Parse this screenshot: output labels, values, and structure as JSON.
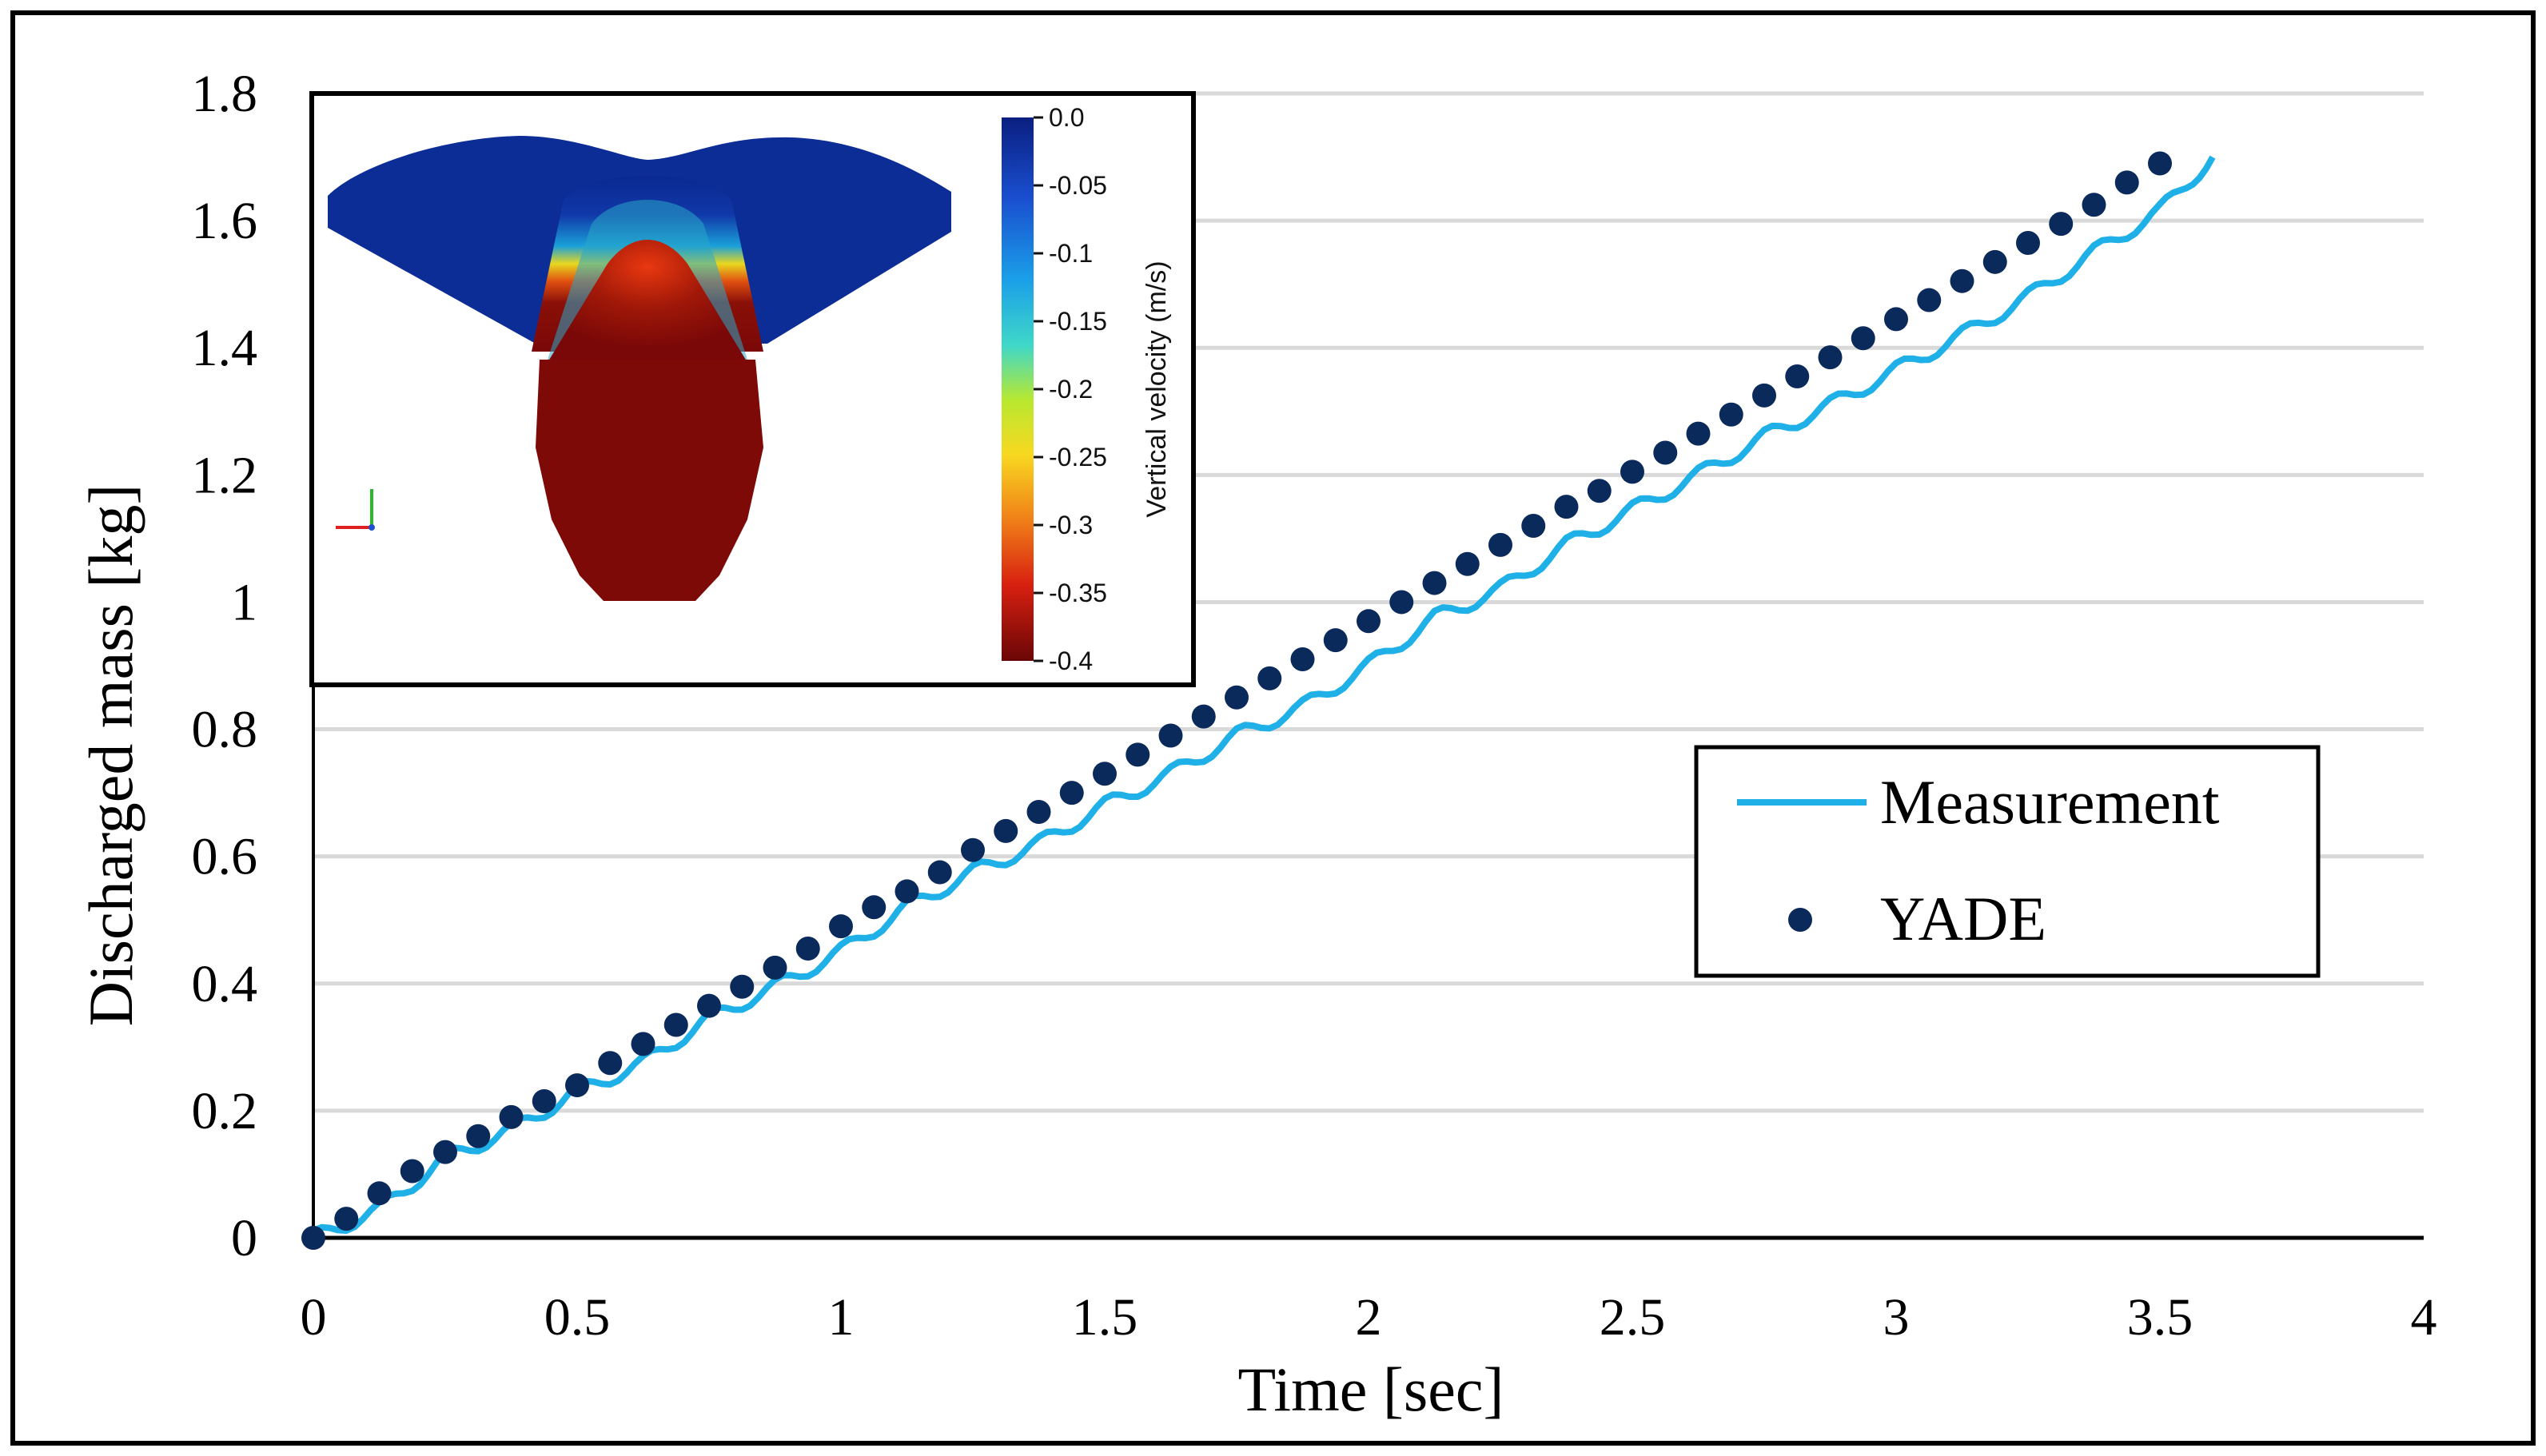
{
  "chart_data": {
    "type": "scatter",
    "xlabel": "Time [sec]",
    "ylabel": "Discharged mass [kg]",
    "xlim": [
      0,
      4
    ],
    "ylim": [
      0,
      1.8
    ],
    "x_ticks": [
      "0",
      "0.5",
      "1",
      "1.5",
      "2",
      "2.5",
      "3",
      "3.5",
      "4"
    ],
    "y_ticks": [
      "0",
      "0.2",
      "0.4",
      "0.6",
      "0.8",
      "1",
      "1.2",
      "1.4",
      "1.6",
      "1.8"
    ],
    "grid": true,
    "legend_position": "right",
    "series": [
      {
        "name": "Measurement",
        "kind": "line",
        "color": "#1fb0e8",
        "x": [
          0,
          0.125,
          0.25,
          0.375,
          0.5,
          0.625,
          0.75,
          0.875,
          1.0,
          1.125,
          1.25,
          1.375,
          1.5,
          1.625,
          1.75,
          1.875,
          2.0,
          2.125,
          2.25,
          2.375,
          2.5,
          2.625,
          2.75,
          2.875,
          3.0,
          3.125,
          3.25,
          3.375,
          3.5,
          3.6
        ],
        "y": [
          0,
          0.045,
          0.125,
          0.17,
          0.23,
          0.275,
          0.345,
          0.395,
          0.45,
          0.52,
          0.575,
          0.62,
          0.68,
          0.73,
          0.79,
          0.835,
          0.9,
          0.975,
          1.02,
          1.09,
          1.145,
          1.2,
          1.26,
          1.31,
          1.365,
          1.42,
          1.48,
          1.55,
          1.615,
          1.7
        ]
      },
      {
        "name": "YADE",
        "kind": "scatter",
        "color": "#0b2a5c",
        "x": [
          0,
          0.0625,
          0.125,
          0.1875,
          0.25,
          0.3125,
          0.375,
          0.4375,
          0.5,
          0.5625,
          0.625,
          0.6875,
          0.75,
          0.8125,
          0.875,
          0.9375,
          1.0,
          1.0625,
          1.125,
          1.1875,
          1.25,
          1.3125,
          1.375,
          1.4375,
          1.5,
          1.5625,
          1.625,
          1.6875,
          1.75,
          1.8125,
          1.875,
          1.9375,
          2.0,
          2.0625,
          2.125,
          2.1875,
          2.25,
          2.3125,
          2.375,
          2.4375,
          2.5,
          2.5625,
          2.625,
          2.6875,
          2.75,
          2.8125,
          2.875,
          2.9375,
          3.0,
          3.0625,
          3.125,
          3.1875,
          3.25,
          3.3125,
          3.375,
          3.4375,
          3.5
        ],
        "y": [
          0,
          0.03,
          0.07,
          0.105,
          0.135,
          0.16,
          0.19,
          0.215,
          0.24,
          0.275,
          0.305,
          0.335,
          0.365,
          0.395,
          0.425,
          0.455,
          0.49,
          0.52,
          0.545,
          0.575,
          0.61,
          0.64,
          0.67,
          0.7,
          0.73,
          0.76,
          0.79,
          0.82,
          0.85,
          0.88,
          0.91,
          0.94,
          0.97,
          1.0,
          1.03,
          1.06,
          1.09,
          1.12,
          1.15,
          1.175,
          1.205,
          1.235,
          1.265,
          1.295,
          1.325,
          1.355,
          1.385,
          1.415,
          1.445,
          1.475,
          1.505,
          1.535,
          1.565,
          1.595,
          1.625,
          1.66,
          1.69
        ]
      }
    ]
  },
  "inset": {
    "description_label": "Vertical velocity (m/s)",
    "colorbar_ticks": [
      "0.0",
      "-0.05",
      "-0.1",
      "-0.15",
      "-0.2",
      "-0.25",
      "-0.3",
      "-0.35",
      "-0.4"
    ],
    "colors": [
      "#0a2890",
      "#1a4fd0",
      "#1aa0e8",
      "#40d8c8",
      "#b8e830",
      "#f8d820",
      "#f08018",
      "#d82010",
      "#7a0808"
    ]
  }
}
